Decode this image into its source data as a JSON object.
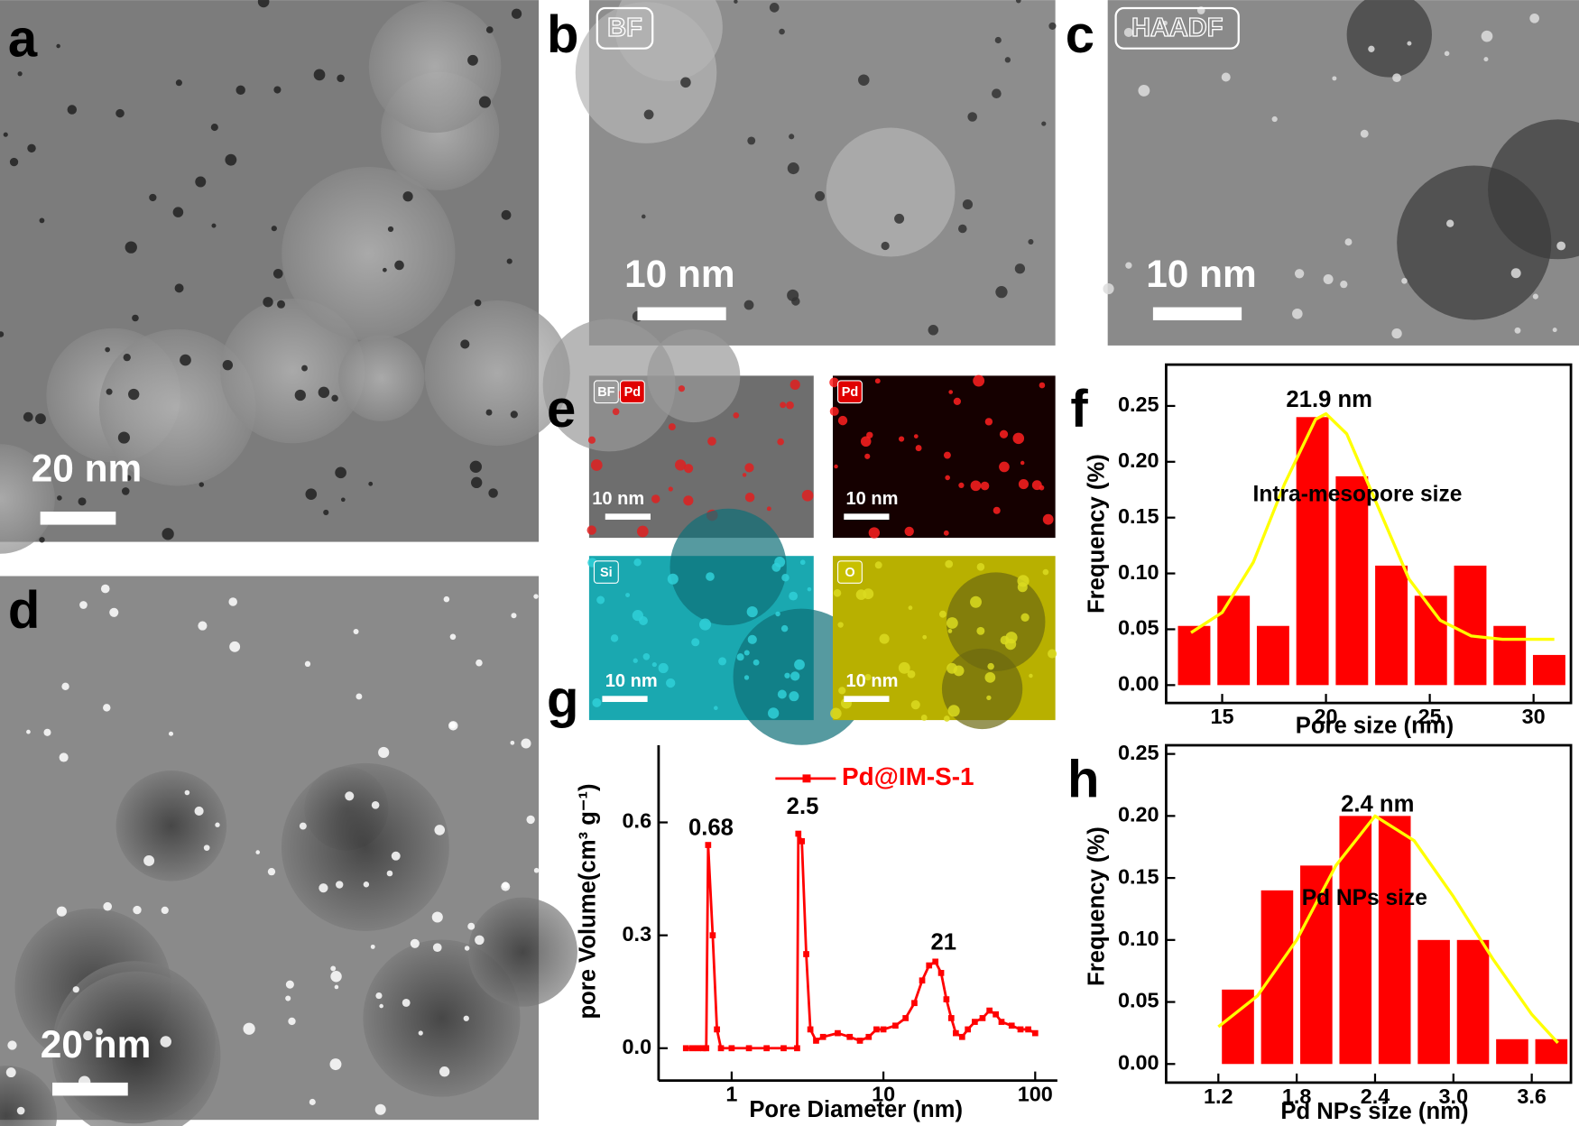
{
  "images": [
    {
      "label": "a",
      "scale_bar": "20 nm"
    },
    {
      "label": "b",
      "tag": "BF",
      "scale_bar": "10 nm"
    },
    {
      "label": "c",
      "tag": "HAADF",
      "scale_bar": "10 nm"
    },
    {
      "label": "d",
      "scale_bar": "20 nm"
    },
    {
      "label": "e",
      "maps": [
        {
          "tags": [
            "BF",
            "Pd"
          ],
          "scale_bar": "10 nm"
        },
        {
          "tags": [
            "Pd"
          ],
          "scale_bar": "10 nm"
        },
        {
          "tags": [
            "Si"
          ],
          "scale_bar": "10 nm"
        },
        {
          "tags": [
            "O"
          ],
          "scale_bar": "10 nm"
        }
      ]
    }
  ],
  "chart_data": [
    {
      "type": "histogram",
      "label": "f",
      "xlabel": "Pore size (nm)",
      "ylabel": "Frequency (%)",
      "bins": [
        12.7,
        14.6,
        16.5,
        18.4,
        20.3,
        22.2,
        24.1,
        26.0,
        27.9,
        29.8,
        31.7
      ],
      "values": [
        0.053,
        0.08,
        0.053,
        0.24,
        0.187,
        0.107,
        0.08,
        0.107,
        0.053,
        0.027
      ],
      "color": "#ff0000",
      "fit": {
        "color": "#ffff00",
        "x": [
          13.5,
          15,
          16.5,
          18,
          19.5,
          20,
          21,
          22.5,
          24,
          25.5,
          27,
          28.5,
          30,
          31
        ],
        "y": [
          0.047,
          0.065,
          0.11,
          0.18,
          0.238,
          0.243,
          0.225,
          0.16,
          0.095,
          0.058,
          0.044,
          0.041,
          0.041,
          0.041
        ]
      },
      "annotations": [
        "21.9 nm",
        "Intra-mesopore size"
      ],
      "xlim": [
        12.3,
        31.8
      ],
      "xticks": [
        15,
        20,
        25,
        30
      ],
      "ylim": [
        -0.016,
        0.287
      ],
      "yticks": [
        {
          "value": 0,
          "label": "0.00"
        },
        0.05,
        {
          "value": 0.1,
          "label": "0.10"
        },
        0.15,
        {
          "value": 0.2,
          "label": "0.20"
        },
        0.25
      ]
    },
    {
      "type": "line",
      "label": "g",
      "xlabel": "Pore Diameter (nm)",
      "ylabel": "pore Volume(cm³ g⁻¹)",
      "xscale": "log",
      "legend": "upper right",
      "x": [
        0.5,
        0.55,
        0.6,
        0.65,
        0.68,
        0.7,
        0.75,
        0.8,
        0.85,
        1,
        1.3,
        1.7,
        2.2,
        2.7,
        2.75,
        2.9,
        3.1,
        3.3,
        3.6,
        4,
        5,
        6,
        7,
        8,
        9,
        10,
        12,
        14,
        16,
        18,
        20,
        22,
        24,
        26,
        28,
        30,
        33,
        36,
        40,
        45,
        50,
        55,
        60,
        70,
        80,
        90,
        100
      ],
      "series": [
        {
          "name": "Pd@IM-S-1",
          "color": "#ff0000",
          "values": [
            0,
            0,
            0,
            0,
            0,
            0.54,
            0.3,
            0.05,
            0,
            0,
            0,
            0,
            0,
            0,
            0.57,
            0.55,
            0.25,
            0.05,
            0.02,
            0.03,
            0.04,
            0.03,
            0.02,
            0.03,
            0.05,
            0.05,
            0.06,
            0.08,
            0.12,
            0.18,
            0.22,
            0.23,
            0.2,
            0.13,
            0.08,
            0.04,
            0.03,
            0.05,
            0.07,
            0.08,
            0.1,
            0.09,
            0.07,
            0.06,
            0.05,
            0.05,
            0.04
          ]
        }
      ],
      "annotations": [
        "0.68",
        "2.5",
        "21"
      ],
      "xlim": [
        0.33,
        140
      ],
      "xticks": [
        1,
        10,
        100
      ],
      "ylim": [
        -0.086,
        0.805
      ],
      "yticks": [
        {
          "value": 0,
          "label": "0.0"
        },
        0.3,
        0.6
      ]
    },
    {
      "type": "histogram",
      "label": "h",
      "xlabel": "Pd NPs size (nm)",
      "ylabel": "Frequency (%)",
      "bins": [
        1.2,
        1.5,
        1.8,
        2.1,
        2.4,
        2.7,
        3.0,
        3.3,
        3.6,
        3.9
      ],
      "values": [
        0.06,
        0.14,
        0.16,
        0.2,
        0.2,
        0.1,
        0.1,
        0.02,
        0.02
      ],
      "color": "#ff0000",
      "fit": {
        "color": "#ffff00",
        "x": [
          1.2,
          1.5,
          1.8,
          2.1,
          2.4,
          2.7,
          3.0,
          3.3,
          3.6,
          3.8
        ],
        "y": [
          0.03,
          0.055,
          0.1,
          0.16,
          0.2,
          0.18,
          0.135,
          0.085,
          0.04,
          0.017
        ]
      },
      "annotations": [
        "2.4 nm",
        "Pd NPs size"
      ],
      "xlim": [
        0.8,
        3.9
      ],
      "xticks": [
        1.2,
        1.8,
        2.4,
        {
          "value": 3,
          "label": "3.0"
        },
        3.6
      ],
      "ylim": [
        -0.015,
        0.257
      ],
      "yticks": [
        {
          "value": 0,
          "label": "0.00"
        },
        0.05,
        {
          "value": 0.1,
          "label": "0.10"
        },
        0.15,
        {
          "value": 0.2,
          "label": "0.20"
        },
        0.25
      ]
    }
  ]
}
